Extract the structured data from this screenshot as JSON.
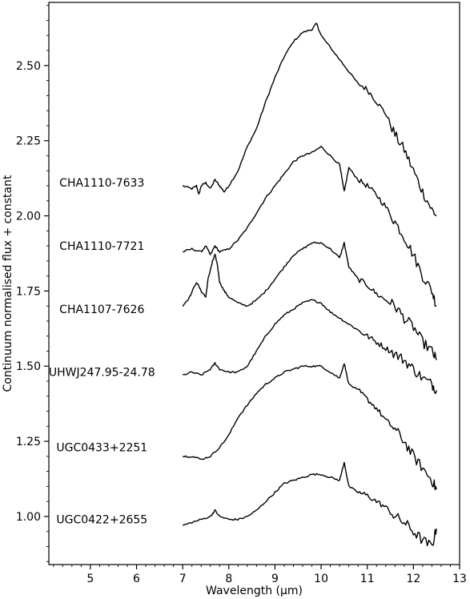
{
  "chart_data": {
    "type": "line",
    "xlabel": "Wavelength (μm)",
    "ylabel": "Continuum normalised flux + constant",
    "xlim": [
      4.1,
      13.0
    ],
    "ylim": [
      0.84,
      2.71
    ],
    "x_ticks": [
      5,
      6,
      7,
      8,
      9,
      10,
      11,
      12,
      13
    ],
    "x_tick_labels": [
      "5",
      "6",
      "7",
      "8",
      "9",
      "10",
      "11",
      "12",
      "13"
    ],
    "y_ticks": [
      1.0,
      1.25,
      1.5,
      1.75,
      2.0,
      2.25,
      2.5
    ],
    "y_tick_labels": [
      "1.00",
      "1.25",
      "1.50",
      "1.75",
      "2.00",
      "2.25",
      "2.50"
    ],
    "grid": false,
    "legend": "none",
    "line_color": "#000000",
    "series": [
      {
        "name": "CHA1110-7633",
        "label_anchor": [
          5.25,
          2.11
        ],
        "x": [
          7.0,
          7.2,
          7.3,
          7.35,
          7.4,
          7.5,
          7.6,
          7.7,
          7.8,
          7.9,
          8.0,
          8.2,
          8.4,
          8.6,
          8.8,
          9.0,
          9.2,
          9.4,
          9.6,
          9.8,
          9.9,
          10.0,
          10.2,
          10.4,
          10.6,
          10.8,
          11.0,
          11.2,
          11.4,
          11.6,
          11.8,
          12.0,
          12.2,
          12.4,
          12.5
        ],
        "y": [
          2.1,
          2.09,
          2.1,
          2.07,
          2.1,
          2.11,
          2.09,
          2.12,
          2.1,
          2.08,
          2.1,
          2.15,
          2.23,
          2.29,
          2.38,
          2.46,
          2.53,
          2.58,
          2.61,
          2.62,
          2.64,
          2.6,
          2.56,
          2.52,
          2.48,
          2.44,
          2.42,
          2.38,
          2.34,
          2.27,
          2.22,
          2.15,
          2.08,
          2.02,
          2.0
        ]
      },
      {
        "name": "CHA1110-7721",
        "label_anchor": [
          5.25,
          1.9
        ],
        "x": [
          7.0,
          7.2,
          7.4,
          7.5,
          7.6,
          7.7,
          7.8,
          8.0,
          8.2,
          8.4,
          8.6,
          8.8,
          9.0,
          9.2,
          9.4,
          9.6,
          9.8,
          10.0,
          10.2,
          10.4,
          10.5,
          10.6,
          10.8,
          11.0,
          11.2,
          11.4,
          11.6,
          11.8,
          12.0,
          12.2,
          12.4,
          12.5
        ],
        "y": [
          1.88,
          1.89,
          1.88,
          1.9,
          1.87,
          1.9,
          1.88,
          1.89,
          1.92,
          1.96,
          2.01,
          2.06,
          2.1,
          2.14,
          2.18,
          2.2,
          2.21,
          2.23,
          2.2,
          2.17,
          2.08,
          2.16,
          2.12,
          2.1,
          2.07,
          2.03,
          1.98,
          1.93,
          1.87,
          1.8,
          1.75,
          1.7
        ]
      },
      {
        "name": "CHA1107-7626",
        "label_anchor": [
          5.25,
          1.69
        ],
        "x": [
          7.0,
          7.15,
          7.3,
          7.4,
          7.5,
          7.55,
          7.6,
          7.65,
          7.7,
          7.75,
          7.8,
          7.9,
          8.0,
          8.2,
          8.4,
          8.6,
          8.8,
          9.0,
          9.2,
          9.4,
          9.6,
          9.8,
          10.0,
          10.2,
          10.4,
          10.5,
          10.6,
          10.8,
          11.0,
          11.2,
          11.4,
          11.6,
          11.8,
          12.0,
          12.2,
          12.4,
          12.5
        ],
        "y": [
          1.7,
          1.73,
          1.78,
          1.75,
          1.73,
          1.79,
          1.82,
          1.85,
          1.87,
          1.84,
          1.78,
          1.75,
          1.73,
          1.71,
          1.7,
          1.72,
          1.75,
          1.79,
          1.83,
          1.87,
          1.89,
          1.91,
          1.91,
          1.89,
          1.86,
          1.91,
          1.83,
          1.79,
          1.77,
          1.74,
          1.72,
          1.7,
          1.66,
          1.63,
          1.58,
          1.55,
          1.52
        ]
      },
      {
        "name": "UHWJ247.95-24.78",
        "label_anchor": [
          5.25,
          1.48
        ],
        "x": [
          7.0,
          7.2,
          7.4,
          7.6,
          7.7,
          7.8,
          8.0,
          8.2,
          8.4,
          8.6,
          8.8,
          9.0,
          9.2,
          9.4,
          9.6,
          9.8,
          10.0,
          10.2,
          10.4,
          10.6,
          10.8,
          11.0,
          11.2,
          11.4,
          11.6,
          11.8,
          12.0,
          12.2,
          12.4,
          12.5
        ],
        "y": [
          1.47,
          1.48,
          1.47,
          1.49,
          1.51,
          1.49,
          1.48,
          1.48,
          1.5,
          1.55,
          1.6,
          1.64,
          1.67,
          1.69,
          1.71,
          1.72,
          1.71,
          1.68,
          1.66,
          1.64,
          1.62,
          1.6,
          1.58,
          1.56,
          1.54,
          1.52,
          1.49,
          1.46,
          1.44,
          1.42
        ]
      },
      {
        "name": "UGC0433+2251",
        "label_anchor": [
          5.25,
          1.23
        ],
        "x": [
          7.0,
          7.2,
          7.4,
          7.6,
          7.8,
          8.0,
          8.2,
          8.4,
          8.6,
          8.8,
          9.0,
          9.2,
          9.4,
          9.6,
          9.8,
          10.0,
          10.2,
          10.4,
          10.5,
          10.6,
          10.8,
          11.0,
          11.2,
          11.4,
          11.6,
          11.8,
          12.0,
          12.2,
          12.4,
          12.5
        ],
        "y": [
          1.2,
          1.2,
          1.19,
          1.2,
          1.23,
          1.27,
          1.33,
          1.37,
          1.41,
          1.44,
          1.46,
          1.48,
          1.49,
          1.5,
          1.5,
          1.5,
          1.48,
          1.46,
          1.51,
          1.44,
          1.42,
          1.39,
          1.36,
          1.32,
          1.29,
          1.25,
          1.2,
          1.16,
          1.12,
          1.09
        ]
      },
      {
        "name": "UGC0422+2655",
        "label_anchor": [
          5.25,
          0.99
        ],
        "x": [
          7.0,
          7.2,
          7.4,
          7.6,
          7.7,
          7.8,
          8.0,
          8.2,
          8.4,
          8.6,
          8.8,
          9.0,
          9.2,
          9.4,
          9.6,
          9.8,
          10.0,
          10.2,
          10.4,
          10.5,
          10.6,
          10.8,
          11.0,
          11.2,
          11.4,
          11.6,
          11.8,
          12.0,
          12.2,
          12.4,
          12.5
        ],
        "y": [
          0.97,
          0.98,
          0.99,
          1.0,
          1.02,
          1.0,
          0.99,
          0.99,
          1.0,
          1.02,
          1.05,
          1.08,
          1.11,
          1.12,
          1.13,
          1.14,
          1.14,
          1.13,
          1.12,
          1.18,
          1.1,
          1.08,
          1.07,
          1.05,
          1.03,
          1.0,
          0.98,
          0.95,
          0.92,
          0.9,
          0.96
        ]
      }
    ]
  }
}
